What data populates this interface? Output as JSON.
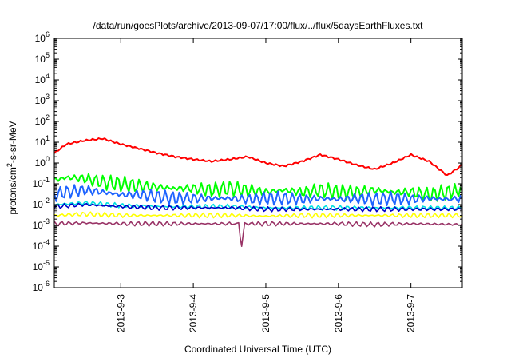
{
  "chart_data": {
    "type": "line",
    "title": "/data/run/goesPlots/archive/2013-09-07/17:00/flux/../flux/5daysEarthFluxes.txt",
    "xlabel": "Coordinated Universal Time (UTC)",
    "ylabel_parts": [
      "protons/cm",
      "2",
      "-s-sr-MeV"
    ],
    "y_scale": "log",
    "ylim": [
      1e-06,
      1000000.0
    ],
    "y_ticks": [
      {
        "base": "10",
        "exp": "-6",
        "value": 1e-06
      },
      {
        "base": "10",
        "exp": "-5",
        "value": 1e-05
      },
      {
        "base": "10",
        "exp": "-4",
        "value": 0.0001
      },
      {
        "base": "10",
        "exp": "-3",
        "value": 0.001
      },
      {
        "base": "10",
        "exp": "-2",
        "value": 0.01
      },
      {
        "base": "10",
        "exp": "-1",
        "value": 0.1
      },
      {
        "base": "10",
        "exp": "0",
        "value": 1
      },
      {
        "base": "10",
        "exp": "1",
        "value": 10
      },
      {
        "base": "10",
        "exp": "2",
        "value": 100
      },
      {
        "base": "10",
        "exp": "3",
        "value": 1000
      },
      {
        "base": "10",
        "exp": "4",
        "value": 10000
      },
      {
        "base": "10",
        "exp": "5",
        "value": 100000
      },
      {
        "base": "10",
        "exp": "6",
        "value": 1000000
      }
    ],
    "xlim": [
      "2013-09-02 02:00",
      "2013-09-07 17:00"
    ],
    "x_ticks": [
      "2013-9-3",
      "2013-9-4",
      "2013-9-5",
      "2013-9-6",
      "2013-9-7"
    ],
    "grid": false,
    "legend": "none",
    "series": [
      {
        "color": "#ff0000",
        "x": [
          "2013-09-02 02:00",
          "2013-09-02 06:00",
          "2013-09-02 12:00",
          "2013-09-02 18:00",
          "2013-09-03 00:00",
          "2013-09-03 06:00",
          "2013-09-03 12:00",
          "2013-09-03 18:00",
          "2013-09-04 00:00",
          "2013-09-04 06:00",
          "2013-09-04 12:00",
          "2013-09-04 18:00",
          "2013-09-05 00:00",
          "2013-09-05 06:00",
          "2013-09-05 12:00",
          "2013-09-05 18:00",
          "2013-09-06 00:00",
          "2013-09-06 06:00",
          "2013-09-06 12:00",
          "2013-09-06 18:00",
          "2013-09-07 00:00",
          "2013-09-07 06:00",
          "2013-09-07 12:00",
          "2013-09-07 17:00"
        ],
        "y": [
          3,
          8,
          12,
          15,
          8,
          5,
          3,
          2,
          1.5,
          1.2,
          1.5,
          2,
          1,
          0.7,
          1.2,
          2.5,
          1.5,
          0.8,
          0.5,
          1,
          2.5,
          1.2,
          0.25,
          0.8
        ]
      },
      {
        "color": "#00ff00",
        "x": [
          "2013-09-02 02:00",
          "2013-09-02 06:00",
          "2013-09-02 12:00",
          "2013-09-02 18:00",
          "2013-09-03 00:00",
          "2013-09-03 06:00",
          "2013-09-03 12:00",
          "2013-09-03 18:00",
          "2013-09-04 00:00",
          "2013-09-04 06:00",
          "2013-09-04 12:00",
          "2013-09-04 18:00",
          "2013-09-05 00:00",
          "2013-09-05 06:00",
          "2013-09-05 12:00",
          "2013-09-05 18:00",
          "2013-09-06 00:00",
          "2013-09-06 06:00",
          "2013-09-06 12:00",
          "2013-09-06 18:00",
          "2013-09-07 00:00",
          "2013-09-07 06:00",
          "2013-09-07 12:00",
          "2013-09-07 17:00"
        ],
        "y": [
          0.15,
          0.2,
          0.18,
          0.12,
          0.1,
          0.08,
          0.07,
          0.06,
          0.06,
          0.05,
          0.06,
          0.05,
          0.04,
          0.05,
          0.04,
          0.05,
          0.04,
          0.04,
          0.05,
          0.04,
          0.04,
          0.03,
          0.04,
          0.05
        ]
      },
      {
        "color": "#1e64ff",
        "x": [
          "2013-09-02 02:00",
          "2013-09-02 06:00",
          "2013-09-02 12:00",
          "2013-09-02 18:00",
          "2013-09-03 00:00",
          "2013-09-03 06:00",
          "2013-09-03 12:00",
          "2013-09-03 18:00",
          "2013-09-04 00:00",
          "2013-09-04 06:00",
          "2013-09-04 12:00",
          "2013-09-04 18:00",
          "2013-09-05 00:00",
          "2013-09-05 06:00",
          "2013-09-05 12:00",
          "2013-09-05 18:00",
          "2013-09-06 00:00",
          "2013-09-06 06:00",
          "2013-09-06 12:00",
          "2013-09-06 18:00",
          "2013-09-07 00:00",
          "2013-09-07 06:00",
          "2013-09-07 12:00",
          "2013-09-07 17:00"
        ],
        "y": [
          0.03,
          0.04,
          0.05,
          0.04,
          0.03,
          0.03,
          0.025,
          0.02,
          0.02,
          0.02,
          0.02,
          0.018,
          0.02,
          0.02,
          0.018,
          0.02,
          0.018,
          0.02,
          0.018,
          0.02,
          0.018,
          0.02,
          0.018,
          0.02
        ]
      },
      {
        "color": "#00e0e0",
        "x": [
          "2013-09-02 02:00",
          "2013-09-02 12:00",
          "2013-09-03 00:00",
          "2013-09-03 12:00",
          "2013-09-04 00:00",
          "2013-09-04 12:00",
          "2013-09-05 00:00",
          "2013-09-05 12:00",
          "2013-09-06 00:00",
          "2013-09-06 12:00",
          "2013-09-07 00:00",
          "2013-09-07 17:00"
        ],
        "y": [
          0.01,
          0.012,
          0.009,
          0.008,
          0.008,
          0.008,
          0.007,
          0.007,
          0.007,
          0.007,
          0.007,
          0.007
        ]
      },
      {
        "color": "#0000c8",
        "x": [
          "2013-09-02 02:00",
          "2013-09-02 12:00",
          "2013-09-03 00:00",
          "2013-09-03 12:00",
          "2013-09-04 00:00",
          "2013-09-04 12:00",
          "2013-09-05 00:00",
          "2013-09-05 12:00",
          "2013-09-06 00:00",
          "2013-09-06 12:00",
          "2013-09-07 00:00",
          "2013-09-07 17:00"
        ],
        "y": [
          0.008,
          0.01,
          0.008,
          0.007,
          0.007,
          0.007,
          0.006,
          0.006,
          0.006,
          0.006,
          0.006,
          0.006
        ]
      },
      {
        "color": "#ffff00",
        "x": [
          "2013-09-02 02:00",
          "2013-09-02 12:00",
          "2013-09-03 00:00",
          "2013-09-03 12:00",
          "2013-09-04 00:00",
          "2013-09-04 12:00",
          "2013-09-05 00:00",
          "2013-09-05 12:00",
          "2013-09-06 00:00",
          "2013-09-06 12:00",
          "2013-09-07 00:00",
          "2013-09-07 17:00"
        ],
        "y": [
          0.003,
          0.0035,
          0.003,
          0.003,
          0.003,
          0.003,
          0.0028,
          0.003,
          0.003,
          0.003,
          0.003,
          0.003
        ]
      },
      {
        "color": "#993366",
        "x": [
          "2013-09-02 02:00",
          "2013-09-02 12:00",
          "2013-09-03 00:00",
          "2013-09-03 12:00",
          "2013-09-04 00:00",
          "2013-09-04 12:00",
          "2013-09-04 15:00",
          "2013-09-04 16:00",
          "2013-09-04 17:00",
          "2013-09-05 00:00",
          "2013-09-05 12:00",
          "2013-09-06 00:00",
          "2013-09-06 12:00",
          "2013-09-07 00:00",
          "2013-09-07 17:00"
        ],
        "y": [
          0.0012,
          0.0013,
          0.0012,
          0.0012,
          0.0012,
          0.0012,
          0.0012,
          0.0001,
          0.0012,
          0.0012,
          0.0012,
          0.0012,
          0.0011,
          0.0012,
          0.0011
        ]
      }
    ]
  }
}
